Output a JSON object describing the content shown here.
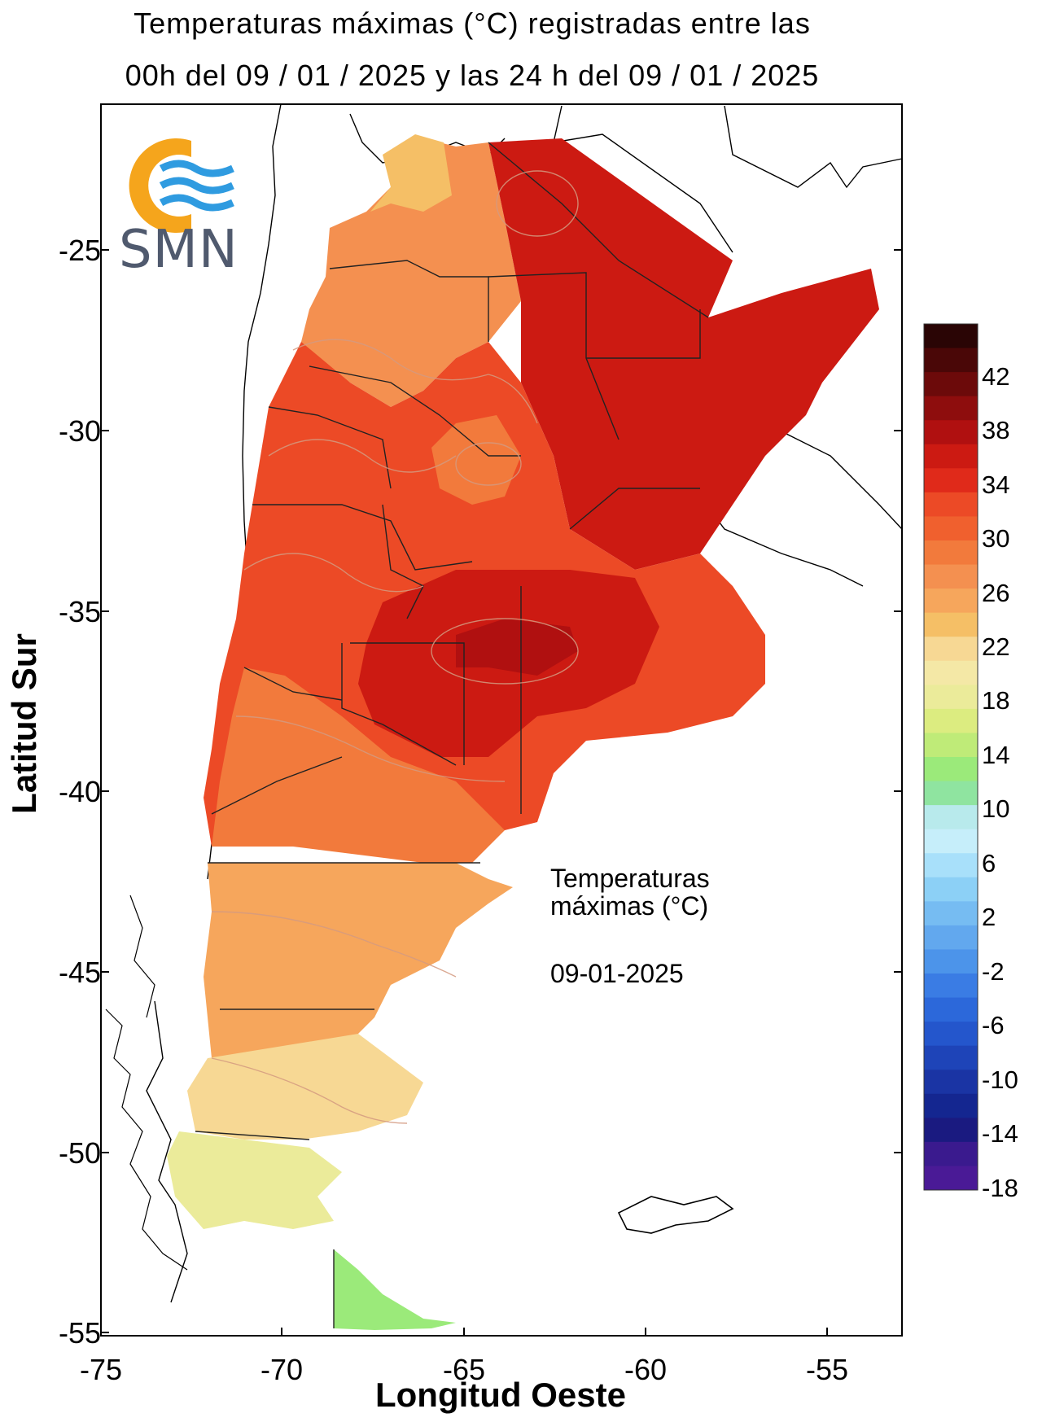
{
  "header": {
    "title_line1": "Temperaturas máximas (°C) registradas entre las",
    "title_line2": "00h del 09 / 01 / 2025 y las 24 h del 09 / 01 / 2025"
  },
  "axes": {
    "x_title": "Longitud Oeste",
    "y_title": "Latitud Sur",
    "x_ticks": [
      "-75",
      "-70",
      "-65",
      "-60",
      "-55"
    ],
    "y_ticks": [
      "-25",
      "-30",
      "-35",
      "-40",
      "-45",
      "-50",
      "-55"
    ]
  },
  "logo": {
    "text": "SMN",
    "colors": {
      "ring": "#f5a51c",
      "waves": "#2f9be0"
    }
  },
  "annotation": {
    "line1": "Temperaturas",
    "line2": "máximas (°C)",
    "date": "09-01-2025"
  },
  "legend": {
    "labels": [
      "42",
      "38",
      "34",
      "30",
      "26",
      "22",
      "18",
      "14",
      "10",
      "6",
      "2",
      "-2",
      "-6",
      "-10",
      "-14",
      "-18"
    ],
    "colors": [
      "#2a0505",
      "#4a0707",
      "#6c0a0a",
      "#8e0d0d",
      "#b01010",
      "#cc1a12",
      "#e02a1a",
      "#ec4a26",
      "#f0602e",
      "#f27a3c",
      "#f49050",
      "#f6a65c",
      "#f5bf66",
      "#f7d894",
      "#f4e8a6",
      "#ebeb9a",
      "#dcec80",
      "#bfeb78",
      "#9bea7a",
      "#8fe4a0",
      "#b8eaec",
      "#c6eefa",
      "#a8e0fa",
      "#8cd0f6",
      "#76bcf2",
      "#62a8ee",
      "#4c94ea",
      "#3a7ce4",
      "#2c68da",
      "#2456cc",
      "#1e44b8",
      "#1a34a4",
      "#142690",
      "#1a1a80",
      "#3a1a8e",
      "#4a1a96"
    ]
  },
  "map_regions": [
    {
      "name": "north-belt",
      "color": "#f6a65c"
    },
    {
      "name": "northeast-hot",
      "color": "#cc1a12"
    },
    {
      "name": "center",
      "color": "#ec4a26"
    },
    {
      "name": "pampa-hot",
      "color": "#cc1a12"
    },
    {
      "name": "north-patagonia",
      "color": "#f27a3c"
    },
    {
      "name": "patagonia-mid",
      "color": "#f6a65c"
    },
    {
      "name": "patagonia-south",
      "color": "#f7d894"
    },
    {
      "name": "santa-cruz-south",
      "color": "#ebeb9a"
    },
    {
      "name": "tierra-del-fuego",
      "color": "#9bea7a"
    }
  ]
}
